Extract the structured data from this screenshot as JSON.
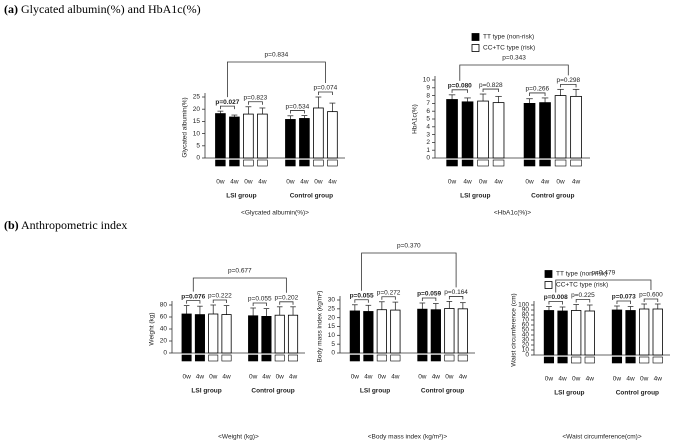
{
  "panels": [
    {
      "label": "(a)",
      "title": "Glycated albumin(%) and HbA1c(%)"
    },
    {
      "label": "(b)",
      "title": "Anthropometric index"
    }
  ],
  "chart_data": [
    {
      "type": "bar",
      "ylabel": "Glycated albumin(%)",
      "caption": "<Glycated albumin(%)>",
      "ylim": [
        0,
        25
      ],
      "yticks": [
        0,
        5,
        10,
        15,
        20,
        25
      ],
      "groups": [
        "LSI group",
        "Control group"
      ],
      "categories": [
        "0w",
        "4w",
        "0w",
        "4w",
        "0w",
        "4w",
        "0w",
        "4w"
      ],
      "series": [
        {
          "color": "#000000",
          "values": [
            18.2,
            16.8,
            null,
            null,
            15.8,
            16.2,
            null,
            null
          ],
          "errors": [
            1.0,
            0.8,
            null,
            null,
            1.5,
            1.2,
            null,
            null
          ]
        },
        {
          "color": "#ffffff",
          "values": [
            null,
            null,
            18.0,
            18.0,
            null,
            null,
            20.5,
            19.0
          ],
          "errors": [
            null,
            null,
            3.0,
            2.5,
            null,
            null,
            4.5,
            3.5
          ]
        }
      ],
      "pvalues": [
        {
          "label": "p=0.027",
          "bold": true
        },
        {
          "label": "p=0.823",
          "bold": false
        },
        {
          "label": "p=0.534",
          "bold": false
        },
        {
          "label": "p=0.074",
          "bold": false
        },
        {
          "label": "p=0.834",
          "bold": false
        }
      ],
      "legend": false
    },
    {
      "type": "bar",
      "ylabel": "HbA1c(%)",
      "caption": "<HbA1c(%)>",
      "ylim": [
        0,
        10
      ],
      "yticks": [
        0,
        1,
        2,
        3,
        4,
        5,
        6,
        7,
        8,
        9,
        10
      ],
      "groups": [
        "LSI group",
        "Control group"
      ],
      "categories": [
        "0w",
        "4w",
        "0w",
        "4w",
        "0w",
        "4w",
        "0w",
        "4w"
      ],
      "series": [
        {
          "name": "TT type (non-risk)",
          "color": "#000000",
          "values": [
            7.5,
            7.2,
            null,
            null,
            7.0,
            7.1,
            null,
            null
          ],
          "errors": [
            0.6,
            0.5,
            null,
            null,
            0.6,
            0.6,
            null,
            null
          ]
        },
        {
          "name": "CC+TC type (risk)",
          "color": "#ffffff",
          "values": [
            null,
            null,
            7.3,
            7.1,
            null,
            null,
            8.0,
            7.9
          ],
          "errors": [
            null,
            null,
            0.9,
            0.8,
            null,
            null,
            0.8,
            0.9
          ]
        }
      ],
      "pvalues": [
        {
          "label": "p=0.080",
          "bold": true
        },
        {
          "label": "p=0.828",
          "bold": false
        },
        {
          "label": "p=0.266",
          "bold": false
        },
        {
          "label": "p=0.298",
          "bold": false
        },
        {
          "label": "p=0.343",
          "bold": false
        }
      ],
      "legend": true
    },
    {
      "type": "bar",
      "ylabel": "Weight (kg)",
      "caption": "<Weight (kg)>",
      "ylim": [
        0,
        80
      ],
      "yticks": [
        0,
        20,
        40,
        60,
        80
      ],
      "groups": [
        "LSI group",
        "Control group"
      ],
      "categories": [
        "0w",
        "4w",
        "0w",
        "4w",
        "0w",
        "4w",
        "0w",
        "4w"
      ],
      "series": [
        {
          "color": "#000000",
          "values": [
            65,
            64,
            null,
            null,
            62,
            61,
            null,
            null
          ],
          "errors": [
            14,
            14,
            null,
            null,
            13,
            13,
            null,
            null
          ]
        },
        {
          "color": "#ffffff",
          "values": [
            null,
            null,
            65,
            64,
            null,
            null,
            63,
            63
          ],
          "errors": [
            null,
            null,
            15,
            15,
            null,
            null,
            14,
            14
          ]
        }
      ],
      "pvalues": [
        {
          "label": "p=0.076",
          "bold": true
        },
        {
          "label": "p=0.222",
          "bold": false
        },
        {
          "label": "p=0.055",
          "bold": false
        },
        {
          "label": "p=0.202",
          "bold": false
        },
        {
          "label": "p=0.677",
          "bold": false
        }
      ],
      "legend": false
    },
    {
      "type": "bar",
      "ylabel": "Body mass index (kg/m²)",
      "caption": "<Body mass index (kg/m²)>",
      "ylim": [
        0,
        30
      ],
      "yticks": [
        0,
        5,
        10,
        15,
        20,
        25,
        30
      ],
      "groups": [
        "LSI group",
        "Control group"
      ],
      "categories": [
        "0w",
        "4w",
        "0w",
        "4w",
        "0w",
        "4w",
        "0w",
        "4w"
      ],
      "series": [
        {
          "color": "#000000",
          "values": [
            23.8,
            23.5,
            null,
            null,
            24.8,
            24.5,
            null,
            null
          ],
          "errors": [
            3.5,
            3.5,
            null,
            null,
            3.5,
            3.5,
            null,
            null
          ]
        },
        {
          "color": "#ffffff",
          "values": [
            null,
            null,
            24.5,
            24.3,
            null,
            null,
            25.2,
            25.0
          ],
          "errors": [
            null,
            null,
            4.5,
            4.5,
            null,
            null,
            4.0,
            3.5
          ]
        }
      ],
      "pvalues": [
        {
          "label": "p=0.055",
          "bold": true
        },
        {
          "label": "p=0.272",
          "bold": false
        },
        {
          "label": "p=0.059",
          "bold": true
        },
        {
          "label": "p=0.164",
          "bold": false
        },
        {
          "label": "p=0.370",
          "bold": false
        }
      ],
      "legend": false
    },
    {
      "type": "bar",
      "ylabel": "Waist circumference (cm)",
      "caption": "<Waist circumference(cm)>",
      "ylim": [
        0,
        100
      ],
      "yticks": [
        0,
        10,
        20,
        30,
        40,
        50,
        60,
        70,
        80,
        90,
        100
      ],
      "groups": [
        "LSI group",
        "Control group"
      ],
      "categories": [
        "0w",
        "4w",
        "0w",
        "4w",
        "0w",
        "4w",
        "0w",
        "4w"
      ],
      "series": [
        {
          "name": "TT type (non-risk)",
          "color": "#000000",
          "values": [
            89,
            88,
            null,
            null,
            90,
            89,
            null,
            null
          ],
          "errors": [
            8,
            8,
            null,
            null,
            8,
            8,
            null,
            null
          ]
        },
        {
          "name": "CC+TC type (risk)",
          "color": "#ffffff",
          "values": [
            null,
            null,
            89,
            88,
            null,
            null,
            92,
            92
          ],
          "errors": [
            null,
            null,
            12,
            12,
            null,
            null,
            10,
            10
          ]
        }
      ],
      "pvalues": [
        {
          "label": "p=0.008",
          "bold": true
        },
        {
          "label": "p=0.225",
          "bold": false
        },
        {
          "label": "p=0.073",
          "bold": true
        },
        {
          "label": "p=0.600",
          "bold": false
        },
        {
          "label": "p=0.479",
          "bold": false
        }
      ],
      "legend": true
    }
  ]
}
